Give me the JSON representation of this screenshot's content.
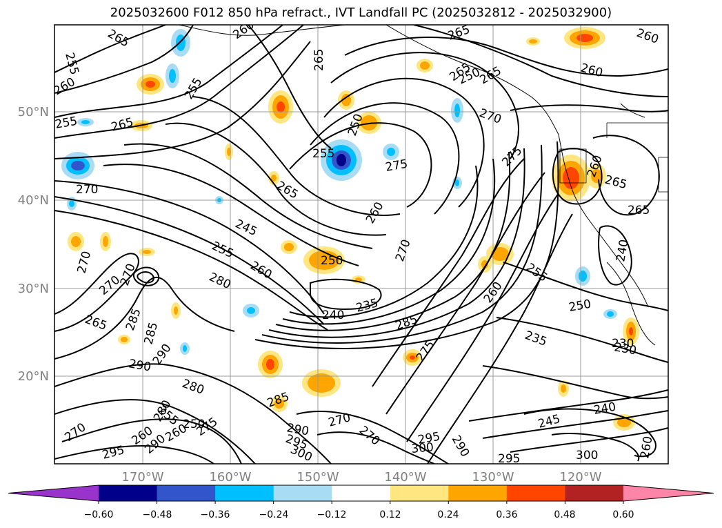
{
  "title": "2025032600 F012 850 hPa refract., IVT Landfall PC (2025032812 - 2025032900)",
  "lat_labels": [
    "50°N",
    "40°N",
    "30°N",
    "20°N"
  ],
  "lon_labels": [
    "170°W",
    "160°W",
    "150°W",
    "140°W",
    "130°W",
    "120°W"
  ],
  "colorbar": {
    "colors": [
      "#9933cc",
      "#00008b",
      "#3355cc",
      "#00bfff",
      "#a8dcf5",
      "#ffffff",
      "#ffe680",
      "#ffa500",
      "#ff4500",
      "#b22222",
      "#ff85a8"
    ],
    "ticks": [
      "−0.60",
      "−0.48",
      "−0.36",
      "−0.24",
      "−0.12",
      "0.12",
      "0.24",
      "0.36",
      "0.48",
      "0.60"
    ]
  },
  "contour_labels": [
    "265",
    "260",
    "265",
    "265",
    "260",
    "255",
    "255",
    "265",
    "260",
    "250",
    "265",
    "260",
    "270",
    "255",
    "265",
    "275",
    "270",
    "265",
    "255",
    "265",
    "245",
    "260",
    "270",
    "255",
    "250",
    "260",
    "250",
    "275",
    "260",
    "265",
    "270",
    "255",
    "240",
    "235",
    "280",
    "230",
    "240",
    "260",
    "285",
    "285",
    "250",
    "270",
    "265",
    "285",
    "270",
    "235",
    "230",
    "290",
    "290",
    "280",
    "275",
    "285",
    "290",
    "295",
    "300",
    "270",
    "270",
    "295",
    "290",
    "245",
    "240",
    "300",
    "300",
    "295",
    "270",
    "280",
    "260",
    "250",
    "275",
    "260",
    "295",
    "290",
    "260",
    "255"
  ]
}
